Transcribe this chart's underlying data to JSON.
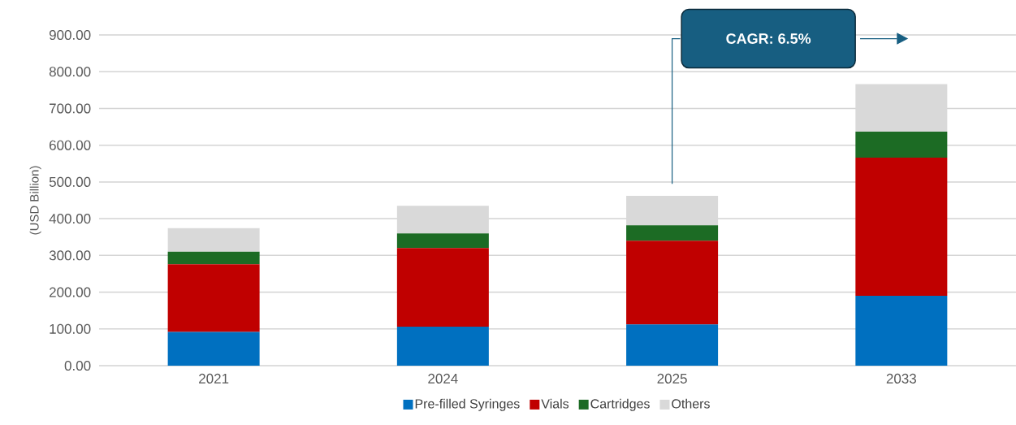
{
  "chart_data": {
    "type": "bar",
    "stacked": true,
    "ylabel": "(USD Billion)",
    "categories": [
      "2021",
      "2024",
      "2025",
      "2033"
    ],
    "series": [
      {
        "name": "Pre-filled Syringes",
        "color": "#0070c0",
        "values": [
          92,
          106,
          112,
          190
        ]
      },
      {
        "name": "Vials",
        "color": "#c00000",
        "values": [
          184,
          214,
          228,
          376
        ]
      },
      {
        "name": "Cartridges",
        "color": "#1c6b24",
        "values": [
          34,
          40,
          42,
          71
        ]
      },
      {
        "name": "Others",
        "color": "#d9d9d9",
        "values": [
          64,
          75,
          80,
          129
        ]
      }
    ],
    "ylim": [
      0,
      900
    ],
    "yticks": [
      {
        "value": 0,
        "label": "0.00"
      },
      {
        "value": 100,
        "label": "100.00"
      },
      {
        "value": 200,
        "label": "200.00"
      },
      {
        "value": 300,
        "label": "300.00"
      },
      {
        "value": 400,
        "label": "400.00"
      },
      {
        "value": 500,
        "label": "500.00"
      },
      {
        "value": 600,
        "label": "600.00"
      },
      {
        "value": 700,
        "label": "700.00"
      },
      {
        "value": 800,
        "label": "800.00"
      },
      {
        "value": 900,
        "label": "900.00"
      }
    ],
    "grid": "y",
    "legend": "bottom",
    "annotations": [
      "CAGR: 6.5%"
    ]
  }
}
